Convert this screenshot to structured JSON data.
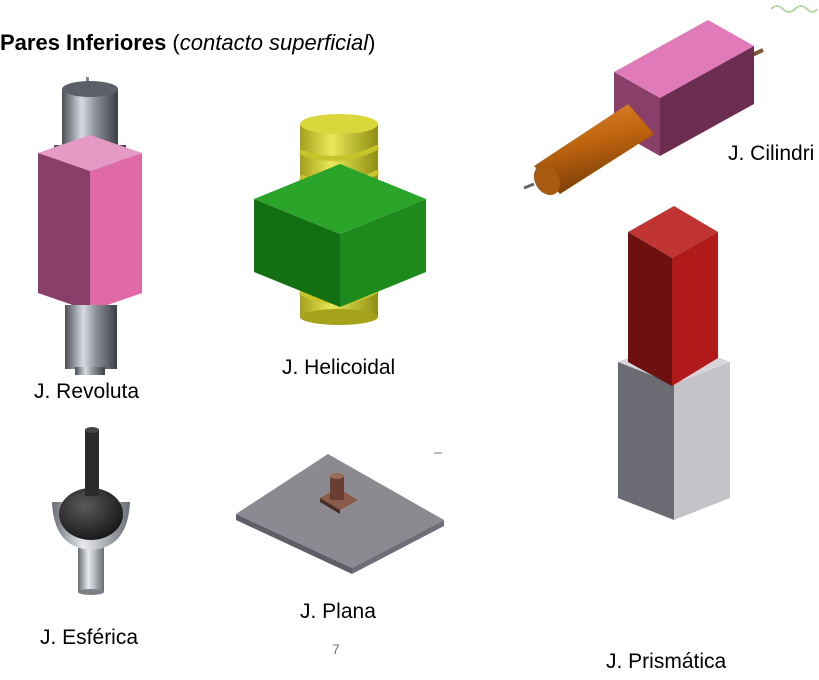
{
  "slide": {
    "title_bold": "Pares Inferiores",
    "title_open": " (",
    "title_italic": "contacto superficial",
    "title_close": ")",
    "page_number": "7"
  },
  "labels": {
    "revoluta": "J. Revoluta",
    "helicoidal": "J. Helicoidal",
    "cilindrica": "J. Cilindri",
    "prismatica": "J. Prismática",
    "esferica": "J. Esférica",
    "plana": "J. Plana"
  },
  "colors": {
    "pink": "#e06aa8",
    "green": "#1e8a1e",
    "yellow": "#d6d42a",
    "orange": "#c0650f",
    "red": "#b01a1a",
    "gray": "#a9a9ad",
    "steel": "#8a8f98"
  }
}
